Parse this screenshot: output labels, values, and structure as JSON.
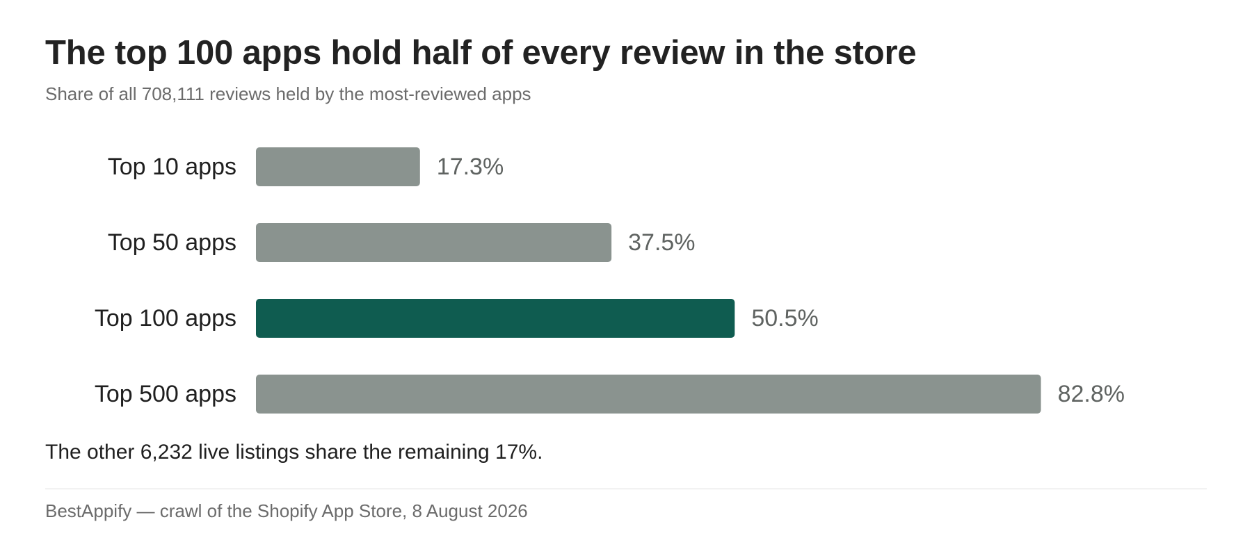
{
  "title": "The top 100 apps hold half of every review in the store",
  "subtitle": "Share of all 708,111 reviews held by the most-reviewed apps",
  "note": "The other 6,232 live listings share the remaining 17%.",
  "source": "BestAppify — crawl of the Shopify App Store, 8 August 2026",
  "colors": {
    "bar_default": "#8a938f",
    "bar_highlight": "#0f5c50",
    "value_label": "#5f6361",
    "category_label": "#1f1f1f"
  },
  "chart_data": {
    "type": "bar",
    "orientation": "horizontal",
    "categories": [
      "Top 10 apps",
      "Top 50 apps",
      "Top 100 apps",
      "Top 500 apps"
    ],
    "values": [
      17.3,
      37.5,
      50.5,
      82.8
    ],
    "value_labels": [
      "17.3%",
      "37.5%",
      "50.5%",
      "82.8%"
    ],
    "highlight_index": 2,
    "xlim": [
      0,
      100
    ],
    "grid": false,
    "legend": "none"
  }
}
